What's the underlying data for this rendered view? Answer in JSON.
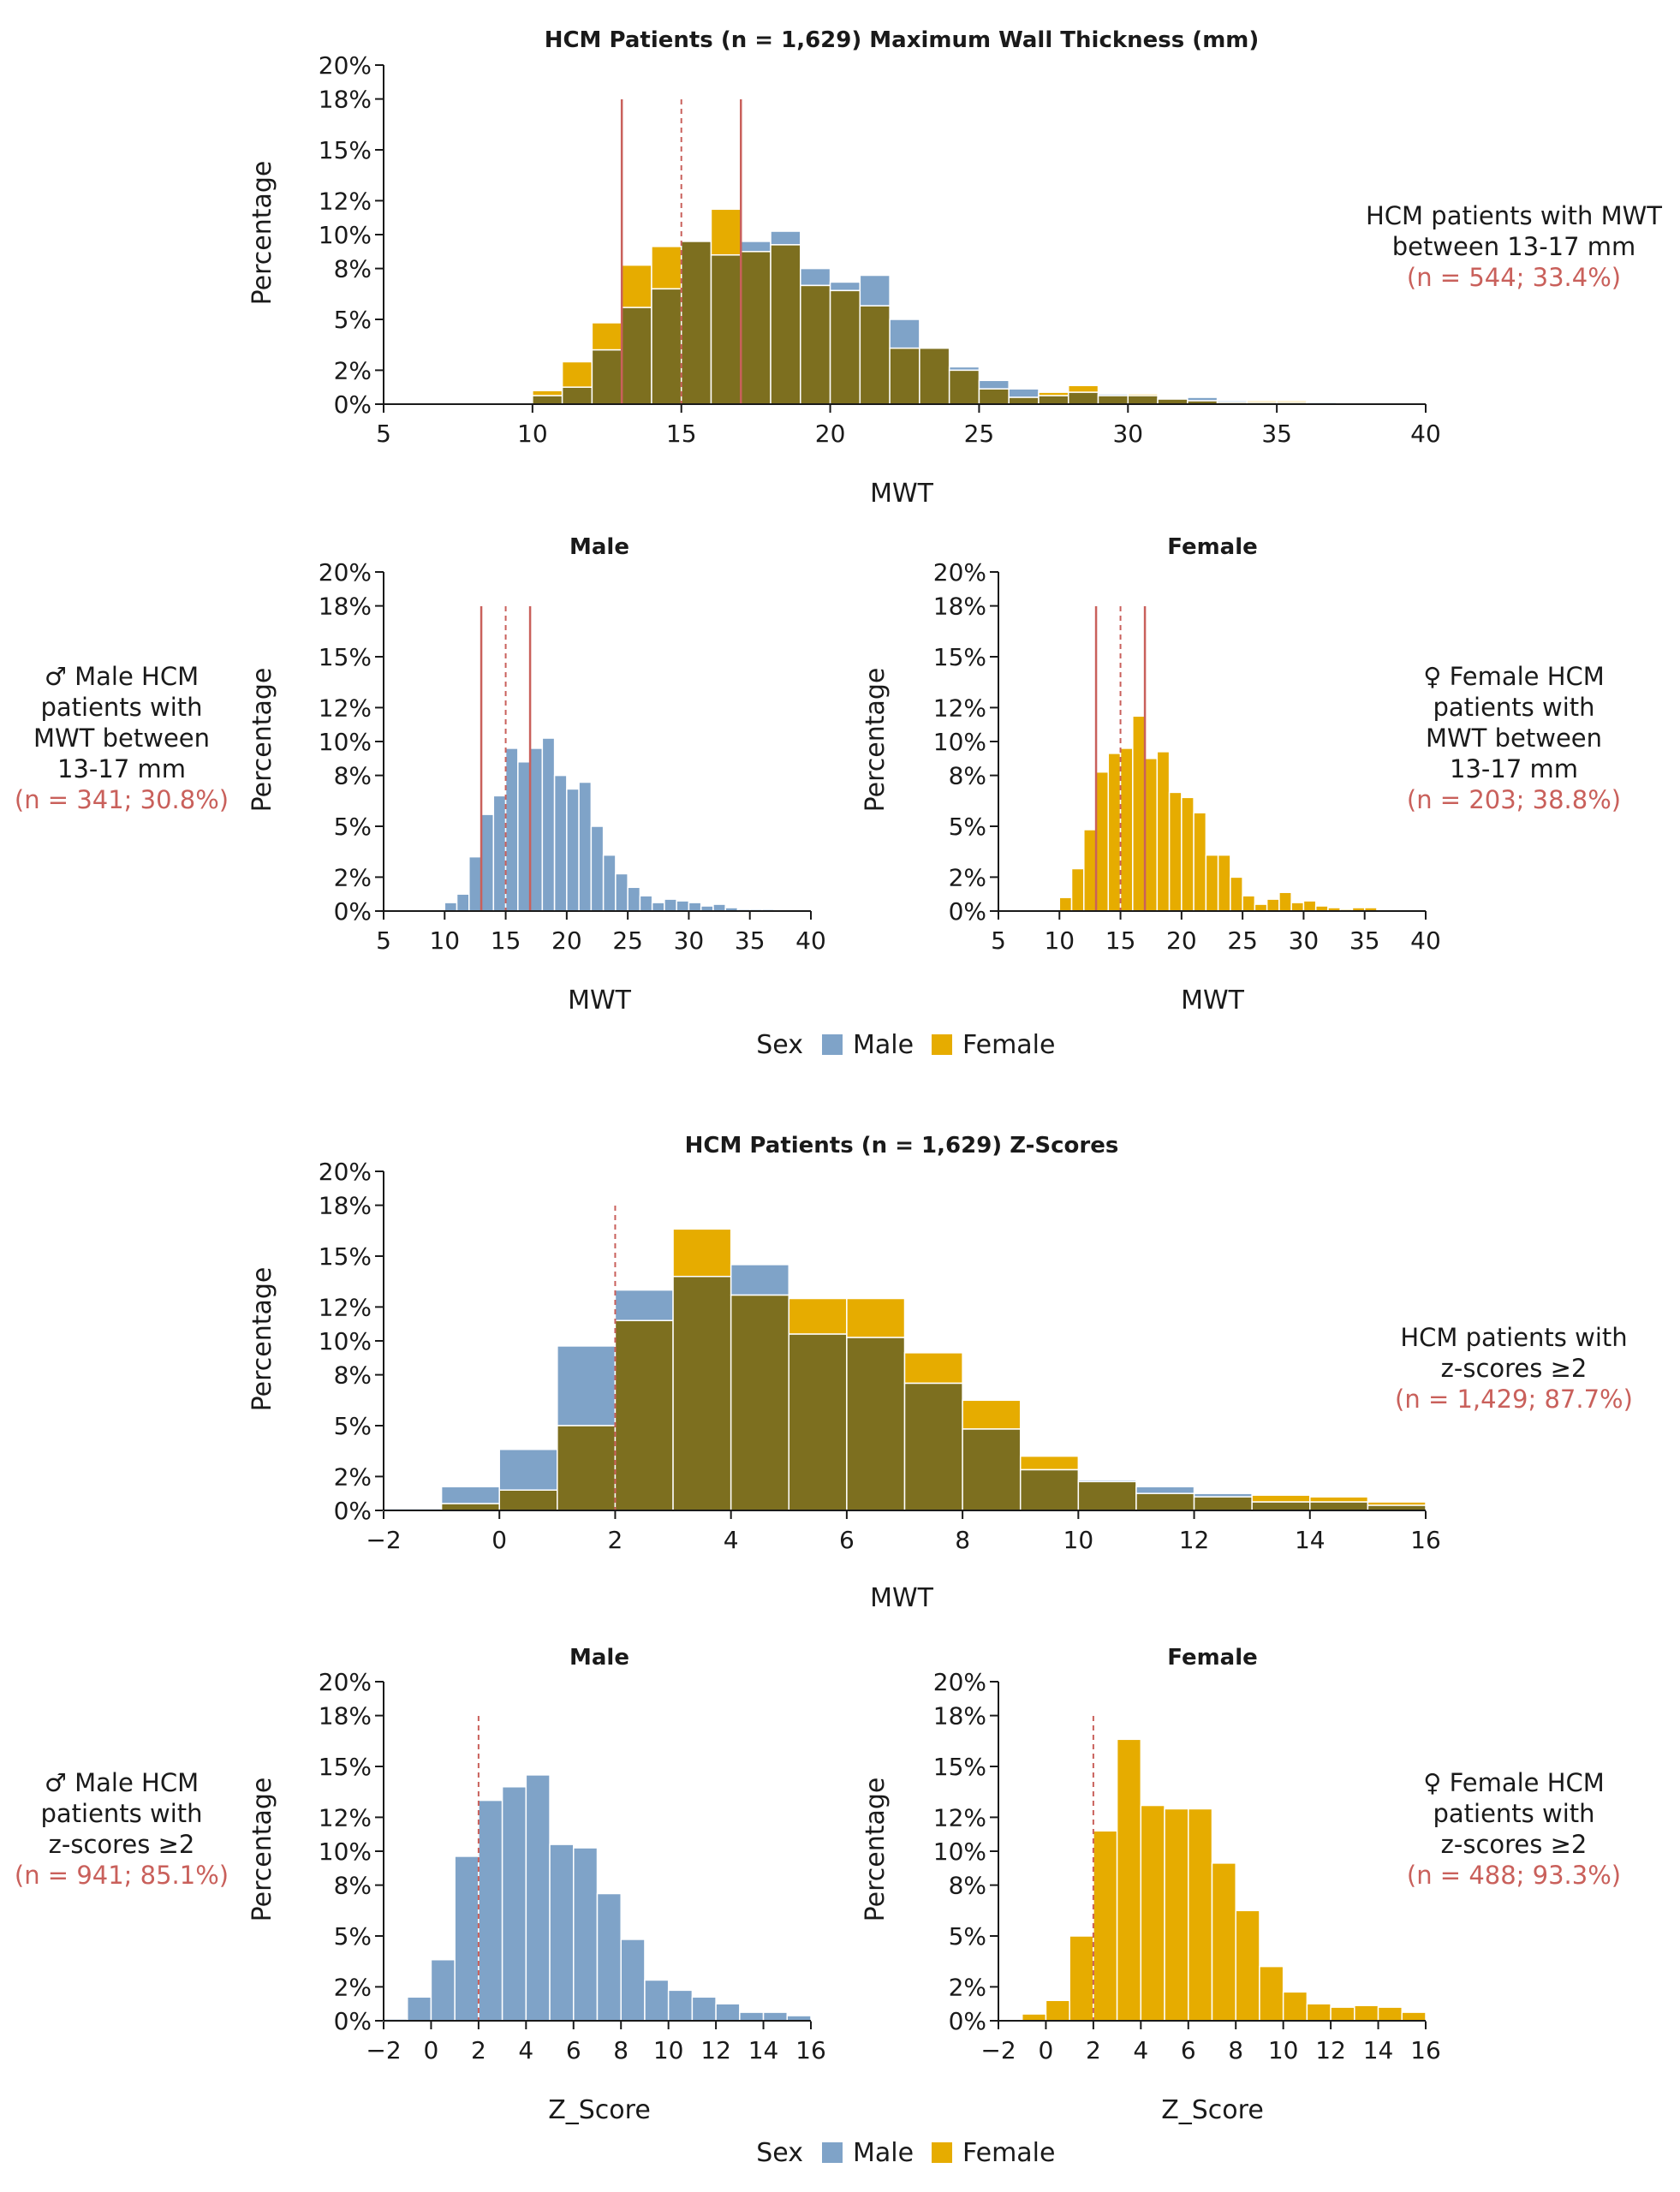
{
  "colors": {
    "male": "#7fa3c8",
    "female": "#e6ac00",
    "overlap": "#7d6f1f",
    "ref": "#c9605b",
    "text": "#1a1a1a"
  },
  "yticks": [
    "0%",
    "2%",
    "5%",
    "8%",
    "10%",
    "12%",
    "15%",
    "18%",
    "20%"
  ],
  "ylabel": "Percentage",
  "legend": {
    "title": "Sex",
    "male": "Male",
    "female": "Female"
  },
  "annotations": {
    "mwt_all": {
      "line1": "HCM patients with MWT",
      "line2": "between 13-17 mm",
      "n": "(n = 544; 33.4%)"
    },
    "mwt_male": {
      "line1": "♂ Male HCM",
      "line2": "patients with",
      "line3": "MWT between",
      "line4": "13-17 mm",
      "n": "(n = 341; 30.8%)"
    },
    "mwt_female": {
      "line1": "♀ Female HCM",
      "line2": "patients with",
      "line3": "MWT between",
      "line4": "13-17 mm",
      "n": "(n = 203; 38.8%)"
    },
    "z_all": {
      "line1": "HCM patients with",
      "line2": "z-scores ≥2",
      "n": "(n = 1,429; 87.7%)"
    },
    "z_male": {
      "line1": "♂ Male HCM",
      "line2": "patients with",
      "line3": "z-scores ≥2",
      "n": "(n = 941; 85.1%)"
    },
    "z_female": {
      "line1": "♀ Female HCM",
      "line2": "patients with",
      "line3": "z-scores ≥2",
      "n": "(n = 488; 93.3%)"
    }
  },
  "chart_data": [
    {
      "id": "mwt_all",
      "type": "bar",
      "title": "HCM Patients (n = 1,629) Maximum Wall Thickness (mm)",
      "xlabel": "MWT",
      "ylabel": "Percentage",
      "xlim": [
        5,
        40
      ],
      "ylim": [
        0,
        20
      ],
      "xtick_step": 5,
      "xticks": [
        "5",
        "10",
        "15",
        "20",
        "25",
        "30",
        "35",
        "40"
      ],
      "bin_start": 10,
      "bin_width": 1,
      "solid_lines": [
        13,
        17
      ],
      "dashed_lines": [
        15
      ],
      "series": [
        {
          "name": "Male",
          "values": [
            0.5,
            1.0,
            3.2,
            5.7,
            6.8,
            9.6,
            8.8,
            9.6,
            10.2,
            8.0,
            7.2,
            7.6,
            5.0,
            3.3,
            2.2,
            1.4,
            0.9,
            0.5,
            0.7,
            0.6,
            0.5,
            0.3,
            0.4,
            0.2,
            0.1,
            0.1,
            0.1
          ]
        },
        {
          "name": "Female",
          "values": [
            0.8,
            2.5,
            4.8,
            8.2,
            9.3,
            9.6,
            11.5,
            9.0,
            9.4,
            7.0,
            6.7,
            5.8,
            3.3,
            3.3,
            2.0,
            0.9,
            0.4,
            0.7,
            1.1,
            0.5,
            0.6,
            0.3,
            0.2,
            0.1,
            0.2,
            0.2,
            0
          ]
        }
      ]
    },
    {
      "id": "mwt_male",
      "type": "bar",
      "title": "Male",
      "xlabel": "MWT",
      "ylabel": "Percentage",
      "xlim": [
        5,
        40
      ],
      "ylim": [
        0,
        20
      ],
      "xtick_step": 5,
      "xticks": [
        "5",
        "10",
        "15",
        "20",
        "25",
        "30",
        "35",
        "40"
      ],
      "bin_start": 10,
      "bin_width": 1,
      "solid_lines": [
        13,
        17
      ],
      "dashed_lines": [
        15
      ],
      "series": [
        {
          "name": "Male",
          "values": [
            0.5,
            1.0,
            3.2,
            5.7,
            6.8,
            9.6,
            8.8,
            9.6,
            10.2,
            8.0,
            7.2,
            7.6,
            5.0,
            3.3,
            2.2,
            1.4,
            0.9,
            0.5,
            0.7,
            0.6,
            0.5,
            0.3,
            0.4,
            0.2,
            0.1,
            0.1,
            0.1
          ]
        }
      ]
    },
    {
      "id": "mwt_female",
      "type": "bar",
      "title": "Female",
      "xlabel": "MWT",
      "ylabel": "Percentage",
      "xlim": [
        5,
        40
      ],
      "ylim": [
        0,
        20
      ],
      "xtick_step": 5,
      "xticks": [
        "5",
        "10",
        "15",
        "20",
        "25",
        "30",
        "35",
        "40"
      ],
      "bin_start": 10,
      "bin_width": 1,
      "solid_lines": [
        13,
        17
      ],
      "dashed_lines": [
        15
      ],
      "series": [
        {
          "name": "Female",
          "values": [
            0.8,
            2.5,
            4.8,
            8.2,
            9.3,
            9.6,
            11.5,
            9.0,
            9.4,
            7.0,
            6.7,
            5.8,
            3.3,
            3.3,
            2.0,
            0.9,
            0.4,
            0.7,
            1.1,
            0.5,
            0.6,
            0.3,
            0.2,
            0.1,
            0.2,
            0.2,
            0
          ]
        }
      ]
    },
    {
      "id": "z_all",
      "type": "bar",
      "title": "HCM Patients (n = 1,629) Z-Scores",
      "xlabel": "MWT",
      "ylabel": "Percentage",
      "xlim": [
        -2,
        16
      ],
      "ylim": [
        0,
        20
      ],
      "xtick_step": 2,
      "xticks": [
        "−2",
        "0",
        "2",
        "4",
        "6",
        "8",
        "10",
        "12",
        "14",
        "16"
      ],
      "bin_start": -2,
      "bin_width": 1,
      "solid_lines": [],
      "dashed_lines": [
        2
      ],
      "series": [
        {
          "name": "Male",
          "values": [
            0.1,
            1.4,
            3.6,
            9.7,
            13.0,
            13.8,
            14.5,
            10.4,
            10.2,
            7.5,
            4.8,
            2.4,
            1.8,
            1.4,
            1.0,
            0.5,
            0.5,
            0.3
          ]
        },
        {
          "name": "Female",
          "values": [
            0,
            0.4,
            1.2,
            5.0,
            11.2,
            16.6,
            12.7,
            12.5,
            12.5,
            9.3,
            6.5,
            3.2,
            1.7,
            1.0,
            0.8,
            0.9,
            0.8,
            0.5
          ]
        }
      ]
    },
    {
      "id": "z_male",
      "type": "bar",
      "title": "Male",
      "xlabel": "Z_Score",
      "ylabel": "Percentage",
      "xlim": [
        -2,
        16
      ],
      "ylim": [
        0,
        20
      ],
      "xtick_step": 2,
      "xticks": [
        "−2",
        "0",
        "2",
        "4",
        "6",
        "8",
        "10",
        "12",
        "14",
        "16"
      ],
      "bin_start": -2,
      "bin_width": 1,
      "solid_lines": [],
      "dashed_lines": [
        2
      ],
      "series": [
        {
          "name": "Male",
          "values": [
            0.1,
            1.4,
            3.6,
            9.7,
            13.0,
            13.8,
            14.5,
            10.4,
            10.2,
            7.5,
            4.8,
            2.4,
            1.8,
            1.4,
            1.0,
            0.5,
            0.5,
            0.3
          ]
        }
      ]
    },
    {
      "id": "z_female",
      "type": "bar",
      "title": "Female",
      "xlabel": "Z_Score",
      "ylabel": "Percentage",
      "xlim": [
        -2,
        16
      ],
      "ylim": [
        0,
        20
      ],
      "xtick_step": 2,
      "xticks": [
        "−2",
        "0",
        "2",
        "4",
        "6",
        "8",
        "10",
        "12",
        "14",
        "16"
      ],
      "bin_start": -2,
      "bin_width": 1,
      "solid_lines": [],
      "dashed_lines": [
        2
      ],
      "series": [
        {
          "name": "Female",
          "values": [
            0,
            0.4,
            1.2,
            5.0,
            11.2,
            16.6,
            12.7,
            12.5,
            12.5,
            9.3,
            6.5,
            3.2,
            1.7,
            1.0,
            0.8,
            0.9,
            0.8,
            0.5
          ]
        }
      ]
    }
  ]
}
